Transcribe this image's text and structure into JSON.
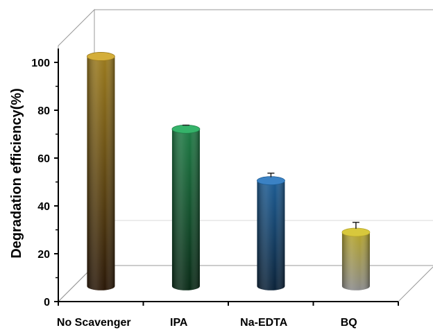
{
  "chart_data": {
    "type": "bar",
    "style": "3d-cylinder",
    "categories": [
      "No Scavenger",
      "IPA",
      "Na-EDTA",
      "BQ"
    ],
    "values": [
      98,
      67,
      45,
      23
    ],
    "errors": [
      0,
      0.5,
      2,
      3
    ],
    "ylabel": "Degradation efficiency(%)",
    "xlabel": "",
    "ylim": [
      0,
      100
    ],
    "yticks": [
      "0",
      "20",
      "40",
      "60",
      "80",
      "100"
    ],
    "grid": false,
    "colors": {
      "No Scavenger": {
        "top": "#d4ae3a",
        "body": "#9a7a1e",
        "bottom": "#2a1808"
      },
      "IPA": {
        "top": "#35b36a",
        "body": "#1f7a45",
        "bottom": "#0a2a17"
      },
      "Na-EDTA": {
        "top": "#3b82c4",
        "body": "#1d5c93",
        "bottom": "#0b2238"
      },
      "BQ": {
        "top": "#d8c83c",
        "body": "#b5a42a",
        "bottom": "#8a8a8a"
      }
    }
  }
}
